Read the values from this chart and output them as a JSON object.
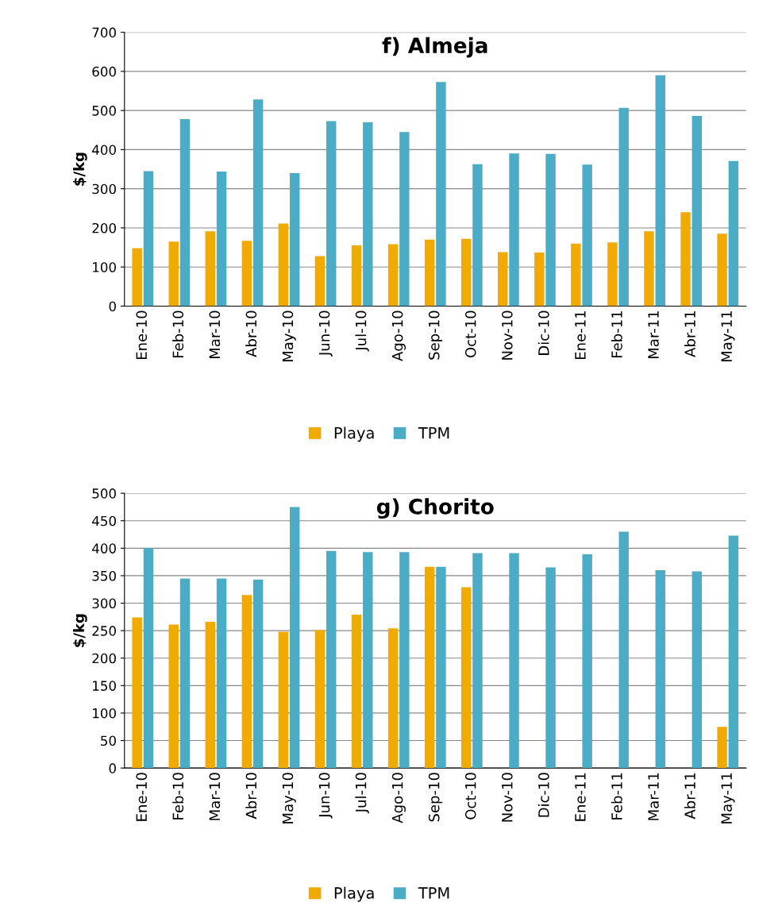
{
  "chart_data": [
    {
      "type": "bar",
      "title": "f) Almeja",
      "ylabel": "$/kg",
      "categories": [
        "Ene-10",
        "Feb-10",
        "Mar-10",
        "Abr-10",
        "May-10",
        "Jun-10",
        "Jul-10",
        "Ago-10",
        "Sep-10",
        "Oct-10",
        "Nov-10",
        "Dic-10",
        "Ene-11",
        "Feb-11",
        "Mar-11",
        "Abr-11",
        "May-11"
      ],
      "series": [
        {
          "name": "Playa",
          "color": "#f0aa00",
          "values": [
            148,
            165,
            191,
            167,
            211,
            128,
            155,
            158,
            170,
            172,
            138,
            137,
            160,
            163,
            191,
            240,
            185
          ]
        },
        {
          "name": "TPM",
          "color": "#4bacc6",
          "values": [
            345,
            478,
            344,
            528,
            340,
            473,
            470,
            445,
            573,
            363,
            390,
            389,
            362,
            507,
            590,
            486,
            371
          ]
        }
      ],
      "ylim": [
        0,
        700
      ],
      "yticks": [
        0,
        100,
        200,
        300,
        400,
        500,
        600,
        700
      ],
      "grid": "y",
      "legend": "bottom"
    },
    {
      "type": "bar",
      "title": "g) Chorito",
      "ylabel": "$/kg",
      "categories": [
        "Ene-10",
        "Feb-10",
        "Mar-10",
        "Abr-10",
        "May-10",
        "Jun-10",
        "Jul-10",
        "Ago-10",
        "Sep-10",
        "Oct-10",
        "Nov-10",
        "Dic-10",
        "Ene-11",
        "Feb-11",
        "Mar-11",
        "Abr-11",
        "May-11"
      ],
      "series": [
        {
          "name": "Playa",
          "color": "#f0aa00",
          "values": [
            274,
            261,
            266,
            315,
            248,
            251,
            279,
            254,
            366,
            329,
            null,
            null,
            null,
            null,
            null,
            null,
            75
          ]
        },
        {
          "name": "TPM",
          "color": "#4bacc6",
          "values": [
            400,
            345,
            345,
            343,
            475,
            395,
            393,
            393,
            366,
            391,
            391,
            365,
            389,
            430,
            360,
            358,
            423
          ]
        }
      ],
      "ylim": [
        0,
        500
      ],
      "yticks": [
        0,
        50,
        100,
        150,
        200,
        250,
        300,
        350,
        400,
        450,
        500
      ],
      "grid": "y",
      "legend": "bottom"
    }
  ]
}
